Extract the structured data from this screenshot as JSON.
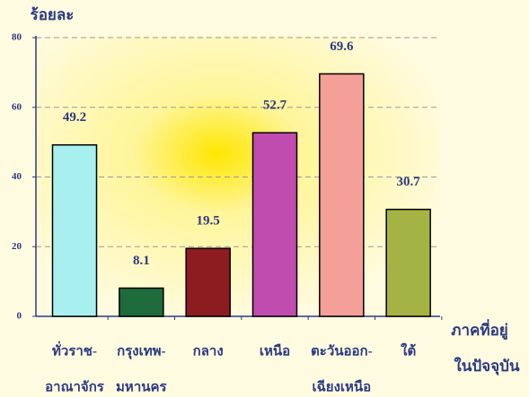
{
  "chart_data": {
    "type": "bar",
    "y_label": "ร้อยละ",
    "x_label": [
      "ภาคที่อยู่",
      "ในปัจจุบัน"
    ],
    "categories": [
      [
        "ทั่วราช-",
        "อาณาจักร"
      ],
      [
        "กรุงเทพ-",
        "มหานคร"
      ],
      [
        "กลาง"
      ],
      [
        "เหนือ"
      ],
      [
        "ตะวันออก-",
        "เฉียงเหนือ"
      ],
      [
        "ใต้"
      ]
    ],
    "values": [
      49.2,
      8.1,
      19.5,
      52.7,
      69.6,
      30.7
    ],
    "colors": [
      "#a8f0f0",
      "#1e6b3c",
      "#8c1c20",
      "#c04cb0",
      "#f4a098",
      "#a4b444"
    ],
    "ylim": [
      0,
      80
    ],
    "yticks": [
      0,
      20,
      40,
      60,
      80
    ],
    "grid": true
  }
}
